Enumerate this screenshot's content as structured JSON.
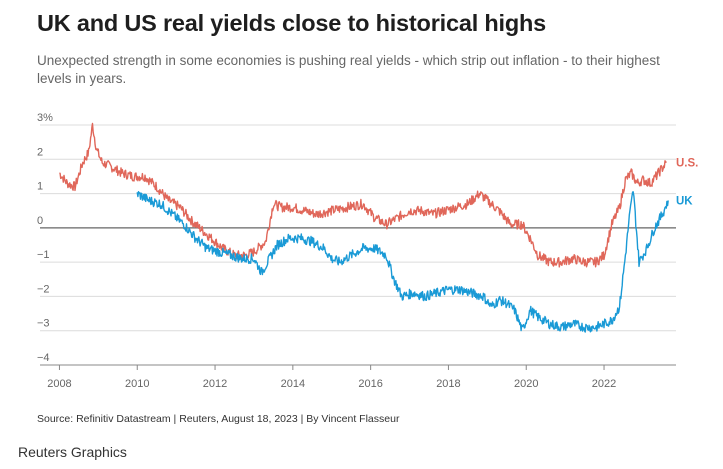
{
  "title": "UK and US real yields close to historical highs",
  "subtitle": "Unexpected strength in some economies is pushing real yields - which strip out inflation - to their highest levels in years.",
  "source": "Source: Refinitiv Datastream | Reuters, August 18, 2023 | By Vincent Flasseur",
  "brand": "Reuters Graphics",
  "chart_data": {
    "type": "line",
    "title": "UK and US real yields close to historical highs",
    "ylabel": "",
    "xlabel": "",
    "xlim": [
      2007.5,
      2023.85
    ],
    "ylim": [
      -4,
      3
    ],
    "y_ticks": [
      {
        "value": 3,
        "label": "3%"
      },
      {
        "value": 2,
        "label": "2"
      },
      {
        "value": 1,
        "label": "1"
      },
      {
        "value": 0,
        "label": "0"
      },
      {
        "value": -1,
        "label": "−1"
      },
      {
        "value": -2,
        "label": "−2"
      },
      {
        "value": -3,
        "label": "−3"
      },
      {
        "value": -4,
        "label": "−4"
      }
    ],
    "x_ticks": [
      2008,
      2010,
      2012,
      2014,
      2016,
      2018,
      2020,
      2022
    ],
    "grid": "horizontal",
    "series": [
      {
        "name": "U.S.",
        "color": "#e0675a",
        "x": [
          2008.0,
          2008.2,
          2008.4,
          2008.6,
          2008.75,
          2008.85,
          2008.95,
          2009.1,
          2009.3,
          2009.6,
          2009.9,
          2010.2,
          2010.5,
          2010.8,
          2011.1,
          2011.4,
          2011.7,
          2011.9,
          2012.2,
          2012.5,
          2012.8,
          2013.0,
          2013.3,
          2013.5,
          2013.7,
          2014.0,
          2014.3,
          2014.6,
          2015.0,
          2015.4,
          2015.8,
          2016.1,
          2016.4,
          2016.7,
          2017.0,
          2017.3,
          2017.6,
          2017.9,
          2018.2,
          2018.5,
          2018.8,
          2019.0,
          2019.3,
          2019.6,
          2019.9,
          2020.1,
          2020.3,
          2020.6,
          2020.9,
          2021.2,
          2021.5,
          2021.8,
          2022.0,
          2022.2,
          2022.4,
          2022.55,
          2022.7,
          2022.85,
          2023.0,
          2023.2,
          2023.4,
          2023.6
        ],
        "y": [
          1.6,
          1.3,
          1.2,
          1.9,
          2.2,
          3.0,
          2.3,
          1.9,
          1.8,
          1.6,
          1.5,
          1.5,
          1.2,
          0.8,
          0.6,
          0.2,
          -0.1,
          -0.3,
          -0.6,
          -0.8,
          -0.8,
          -0.7,
          -0.4,
          0.7,
          0.6,
          0.6,
          0.5,
          0.4,
          0.5,
          0.6,
          0.7,
          0.3,
          0.1,
          0.3,
          0.5,
          0.5,
          0.4,
          0.5,
          0.6,
          0.7,
          1.0,
          0.8,
          0.5,
          0.1,
          0.1,
          -0.3,
          -0.8,
          -1.0,
          -1.0,
          -0.9,
          -1.0,
          -1.0,
          -0.8,
          0.1,
          0.6,
          1.4,
          1.6,
          1.3,
          1.4,
          1.3,
          1.6,
          1.9
        ]
      },
      {
        "name": "UK",
        "color": "#1a9ad6",
        "x": [
          2010.0,
          2010.3,
          2010.6,
          2010.9,
          2011.2,
          2011.5,
          2011.8,
          2012.1,
          2012.4,
          2012.7,
          2013.0,
          2013.2,
          2013.4,
          2013.6,
          2013.9,
          2014.2,
          2014.5,
          2014.8,
          2015.0,
          2015.2,
          2015.5,
          2015.8,
          2016.1,
          2016.4,
          2016.6,
          2016.8,
          2017.1,
          2017.4,
          2017.7,
          2018.0,
          2018.3,
          2018.6,
          2018.9,
          2019.1,
          2019.3,
          2019.5,
          2019.7,
          2019.9,
          2020.1,
          2020.3,
          2020.6,
          2020.9,
          2021.2,
          2021.5,
          2021.8,
          2022.0,
          2022.2,
          2022.4,
          2022.55,
          2022.65,
          2022.75,
          2022.9,
          2023.1,
          2023.3,
          2023.5,
          2023.65
        ],
        "y": [
          1.0,
          0.8,
          0.7,
          0.4,
          0.1,
          -0.3,
          -0.6,
          -0.7,
          -0.8,
          -0.9,
          -0.9,
          -1.3,
          -0.9,
          -0.5,
          -0.3,
          -0.3,
          -0.4,
          -0.6,
          -0.9,
          -1.0,
          -0.8,
          -0.6,
          -0.6,
          -0.8,
          -1.5,
          -2.0,
          -1.9,
          -2.0,
          -1.9,
          -1.8,
          -1.8,
          -1.9,
          -2.0,
          -2.3,
          -2.1,
          -2.2,
          -2.4,
          -3.0,
          -2.4,
          -2.6,
          -2.8,
          -2.9,
          -2.8,
          -2.9,
          -2.9,
          -2.8,
          -2.7,
          -2.3,
          -0.8,
          0.3,
          1.1,
          -1.0,
          -0.6,
          0.0,
          0.4,
          0.8
        ]
      }
    ],
    "legend": "inline-right"
  }
}
